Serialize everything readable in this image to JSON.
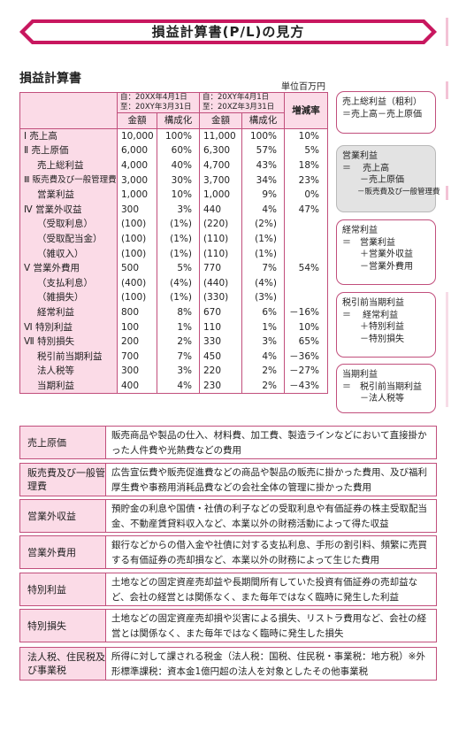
{
  "title": "損益計算書(P/L)の見方",
  "section_title": "損益計算書",
  "unit": "単位百万円",
  "table": {
    "period1": [
      "自：20XX年4月1日",
      "至：20XY年3月31日"
    ],
    "period2": [
      "自：20XY年4月1日",
      "至：20XZ年3月31日"
    ],
    "change_header": "増減率",
    "sub_headers": [
      "金額",
      "構成化",
      "金額",
      "構成化"
    ],
    "rows": [
      {
        "label": "Ⅰ 売上高",
        "a1": "10,000",
        "p1": "100%",
        "a2": "11,000",
        "p2": "100%",
        "chg": "10%"
      },
      {
        "label": "Ⅱ 売上原価",
        "a1": "6,000",
        "p1": "60%",
        "a2": "6,300",
        "p2": "57%",
        "chg": "5%"
      },
      {
        "label": "売上総利益",
        "a1": "4,000",
        "p1": "40%",
        "a2": "4,700",
        "p2": "43%",
        "chg": "18%"
      },
      {
        "label": "Ⅲ 販売費及び一般管理費",
        "a1": "3,000",
        "p1": "30%",
        "a2": "3,700",
        "p2": "34%",
        "chg": "23%"
      },
      {
        "label": "営業利益",
        "a1": "1,000",
        "p1": "10%",
        "a2": "1,000",
        "p2": "9%",
        "chg": "0%"
      },
      {
        "label": "Ⅳ 営業外収益",
        "a1": "300",
        "p1": "3%",
        "a2": "440",
        "p2": "4%",
        "chg": "47%"
      },
      {
        "label": "（受取利息）",
        "a1": "(100)",
        "p1": "(1%)",
        "a2": "(220)",
        "p2": "(2%)",
        "chg": ""
      },
      {
        "label": "（受取配当金）",
        "a1": "(100)",
        "p1": "(1%)",
        "a2": "(110)",
        "p2": "(1%)",
        "chg": ""
      },
      {
        "label": "（雑収入）",
        "a1": "(100)",
        "p1": "(1%)",
        "a2": "(110)",
        "p2": "(1%)",
        "chg": ""
      },
      {
        "label": "Ⅴ 営業外費用",
        "a1": "500",
        "p1": "5%",
        "a2": "770",
        "p2": "7%",
        "chg": "54%"
      },
      {
        "label": "（支払利息）",
        "a1": "(400)",
        "p1": "(4%)",
        "a2": "(440)",
        "p2": "(4%)",
        "chg": ""
      },
      {
        "label": "（雑損失）",
        "a1": "(100)",
        "p1": "(1%)",
        "a2": "(330)",
        "p2": "(3%)",
        "chg": ""
      },
      {
        "label": "経常利益",
        "a1": "800",
        "p1": "8%",
        "a2": "670",
        "p2": "6%",
        "chg": "－16%"
      },
      {
        "label": "Ⅵ 特別利益",
        "a1": "100",
        "p1": "1%",
        "a2": "110",
        "p2": "1%",
        "chg": "10%"
      },
      {
        "label": "Ⅶ 特別損失",
        "a1": "200",
        "p1": "2%",
        "a2": "330",
        "p2": "3%",
        "chg": "65%"
      },
      {
        "label": "税引前当期利益",
        "a1": "700",
        "p1": "7%",
        "a2": "450",
        "p2": "4%",
        "chg": "－36%"
      },
      {
        "label": "法人税等",
        "a1": "300",
        "p1": "3%",
        "a2": "220",
        "p2": "2%",
        "chg": "－27%"
      },
      {
        "label": "当期利益",
        "a1": "400",
        "p1": "4%",
        "a2": "230",
        "p2": "2%",
        "chg": "－43%"
      }
    ]
  },
  "side_boxes": [
    {
      "lines": [
        "売上総利益（粗利）",
        "＝売上高－売上原価"
      ]
    },
    {
      "lines": [
        "営業利益",
        "＝　 売上高",
        "　　－売上原価",
        "　　－販売費及び一般管理費"
      ]
    },
    {
      "lines": [
        "経常利益",
        "＝　営業利益",
        "　　＋営業外収益",
        "　　－営業外費用"
      ]
    },
    {
      "lines": [
        "税引前当期利益",
        "＝　 経常利益",
        "　　＋特別利益",
        "　　－特別損失"
      ]
    },
    {
      "lines": [
        "当期利益",
        "＝　税引前当期利益",
        "　　－法人税等"
      ]
    }
  ],
  "definitions": [
    {
      "term": "売上原価",
      "desc": "販売商品や製品の仕入、材料費、加工費、製造ラインなどにおいて直接掛かった人件費や光熱費などの費用"
    },
    {
      "term": "販売費及び一般管理費",
      "desc": "広告宣伝費や販売促進費などの商品や製品の販売に掛かった費用、及び福利厚生費や事務用消耗品費などの会社全体の管理に掛かった費用"
    },
    {
      "term": "営業外収益",
      "desc": "預貯金の利息や国債・社債の利子などの受取利息や有価証券の株主受取配当金、不動産賃貸料収入など、本業以外の財務活動によって得た収益"
    },
    {
      "term": "営業外費用",
      "desc": "銀行などからの借入金や社債に対する支払利息、手形の割引料、頻繁に売買する有価証券の売却損など、本業以外の財務によって生じた費用"
    },
    {
      "term": "特別利益",
      "desc": "土地などの固定資産売却益や長期間所有していた投資有価証券の売却益など、会社の経営とは関係なく、また毎年ではなく臨時に発生した利益"
    },
    {
      "term": "特別損失",
      "desc": "土地などの固定資産売却損や災害による損失、リストラ費用など、会社の経営とは関係なく、また毎年ではなく臨時に発生した損失"
    },
    {
      "term": "法人税、住民税及び事業税",
      "desc": "所得に対して課される税金（法人税：国税、住民税・事業税：地方税）※外形標準課税：資本金1億円超の法人を対象としたその他事業税"
    }
  ],
  "colors": {
    "accent": "#c8175f",
    "light_pink": "#fbdbe7",
    "border": "#c14f7c",
    "gray_box": "#e3e3e3"
  }
}
